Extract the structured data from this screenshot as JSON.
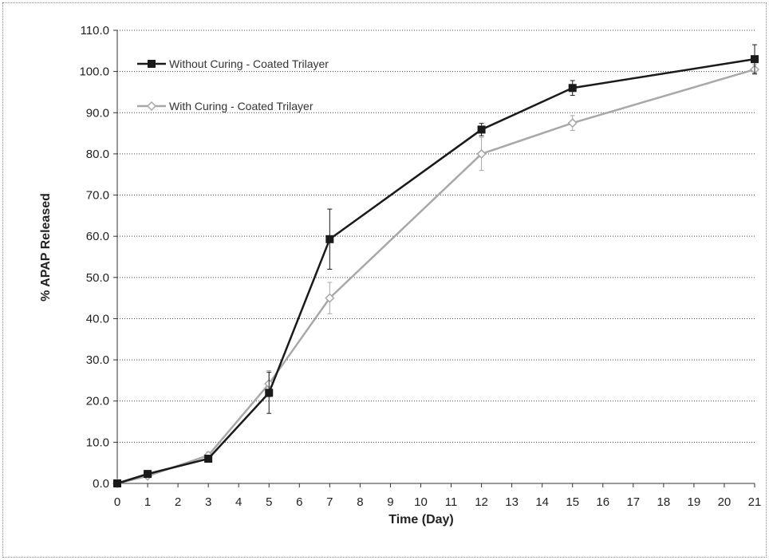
{
  "chart_data": {
    "type": "line",
    "title": "",
    "xlabel": "Time (Day)",
    "ylabel": "% APAP Released",
    "xlim": [
      0,
      21
    ],
    "ylim": [
      0,
      110
    ],
    "x_ticks": [
      0,
      1,
      2,
      3,
      4,
      5,
      6,
      7,
      8,
      9,
      10,
      11,
      12,
      13,
      14,
      15,
      16,
      17,
      18,
      19,
      20,
      21
    ],
    "y_ticks": [
      "0.0",
      "10.0",
      "20.0",
      "30.0",
      "40.0",
      "50.0",
      "60.0",
      "70.0",
      "80.0",
      "90.0",
      "100.0",
      "110.0"
    ],
    "grid": "horizontal dotted",
    "legend_position": "top-left",
    "series": [
      {
        "name": "Without Curing - Coated Trilayer",
        "color": "#1a1a1a",
        "marker": "square",
        "points": [
          {
            "x": 0,
            "y": 0.0,
            "err": 0.0
          },
          {
            "x": 1,
            "y": 2.3,
            "err": 0.5
          },
          {
            "x": 3,
            "y": 6.0,
            "err": 0.6
          },
          {
            "x": 5,
            "y": 22.0,
            "err": 5.0
          },
          {
            "x": 7,
            "y": 59.3,
            "err": 7.3
          },
          {
            "x": 12,
            "y": 85.9,
            "err": 1.5
          },
          {
            "x": 15,
            "y": 96.0,
            "err": 1.8
          },
          {
            "x": 21,
            "y": 103.0,
            "err": 3.5
          }
        ]
      },
      {
        "name": "With Curing - Coated Trilayer",
        "color": "#a8a8a8",
        "marker": "diamond",
        "points": [
          {
            "x": 0,
            "y": 0.0,
            "err": 0.0
          },
          {
            "x": 1,
            "y": 1.8,
            "err": 0.4
          },
          {
            "x": 3,
            "y": 6.8,
            "err": 0.8
          },
          {
            "x": 5,
            "y": 24.2,
            "err": 3.2
          },
          {
            "x": 7,
            "y": 45.0,
            "err": 3.8
          },
          {
            "x": 12,
            "y": 80.0,
            "err": 4.0
          },
          {
            "x": 15,
            "y": 87.5,
            "err": 1.8
          },
          {
            "x": 21,
            "y": 100.5,
            "err": 1.2
          }
        ]
      }
    ]
  }
}
